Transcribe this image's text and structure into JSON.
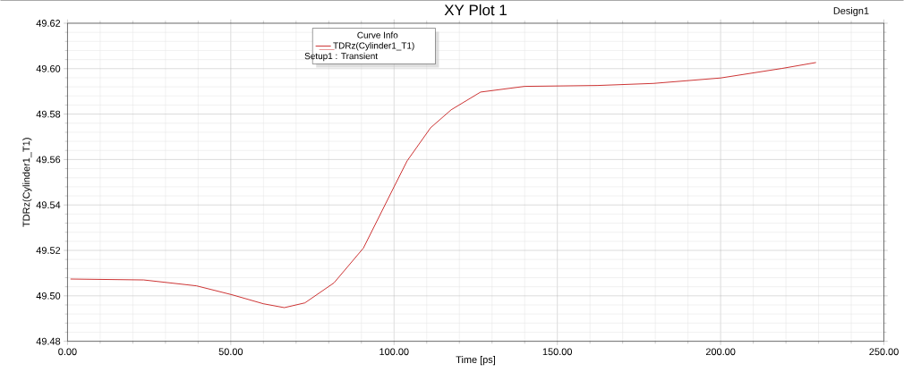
{
  "chart_data": {
    "type": "line",
    "title": "XY Plot 1",
    "xlabel": "Time [ps]",
    "ylabel": "TDRz(Cylinder1_T1)",
    "legend_title": "Curve Info",
    "annotations": [
      "Setup1 : Transient",
      "Design1"
    ],
    "series": [
      {
        "name": "TDRz(Cylinder1_T1)",
        "color": "#c00000",
        "x": [
          0.9,
          23.3,
          39.5,
          50.3,
          60,
          66.4,
          72.7,
          81.6,
          90.6,
          100,
          104,
          111.2,
          117.5,
          126.5,
          140,
          162.4,
          179.4,
          200,
          218.8,
          229.2
        ],
        "values": [
          49.5074,
          49.507,
          49.5044,
          49.5005,
          49.4965,
          49.4948,
          49.4969,
          49.5057,
          49.521,
          49.548,
          49.5594,
          49.574,
          49.5819,
          49.5897,
          49.5922,
          49.5926,
          49.5935,
          49.5959,
          49.6001,
          49.6027
        ]
      }
    ],
    "xlim": [
      0,
      250
    ],
    "ylim": [
      49.48,
      49.62
    ],
    "xticks": [
      {
        "value": 0,
        "label": "0.00"
      },
      {
        "value": 50,
        "label": "50.00"
      },
      {
        "value": 100,
        "label": "100.00"
      },
      {
        "value": 150,
        "label": "150.00"
      },
      {
        "value": 200,
        "label": "200.00"
      },
      {
        "value": 250,
        "label": "250.00"
      }
    ],
    "yticks": [
      {
        "value": 49.48,
        "label": "49.48"
      },
      {
        "value": 49.5,
        "label": "49.50"
      },
      {
        "value": 49.52,
        "label": "49.52"
      },
      {
        "value": 49.54,
        "label": "49.54"
      },
      {
        "value": 49.56,
        "label": "49.56"
      },
      {
        "value": 49.58,
        "label": "49.58"
      },
      {
        "value": 49.6,
        "label": "49.60"
      },
      {
        "value": 49.62,
        "label": "49.62"
      }
    ],
    "grid": true,
    "legend": "top left",
    "marker": "none",
    "line_style": "solid"
  }
}
